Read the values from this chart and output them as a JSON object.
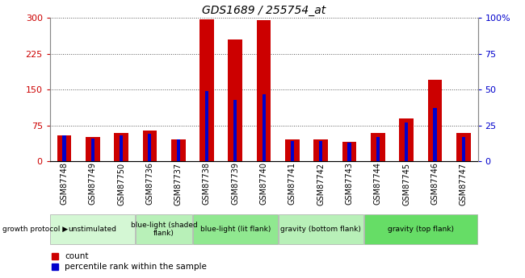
{
  "title": "GDS1689 / 255754_at",
  "samples": [
    "GSM87748",
    "GSM87749",
    "GSM87750",
    "GSM87736",
    "GSM87737",
    "GSM87738",
    "GSM87739",
    "GSM87740",
    "GSM87741",
    "GSM87742",
    "GSM87743",
    "GSM87744",
    "GSM87745",
    "GSM87746",
    "GSM87747"
  ],
  "count_values": [
    55,
    50,
    60,
    65,
    45,
    298,
    255,
    296,
    45,
    45,
    40,
    60,
    90,
    170,
    60
  ],
  "percentile_values": [
    18,
    16,
    18,
    19,
    15,
    49,
    43,
    47,
    14,
    14,
    13,
    17,
    27,
    37,
    17
  ],
  "ylim_left": [
    0,
    300
  ],
  "ylim_right": [
    0,
    100
  ],
  "yticks_left": [
    0,
    75,
    150,
    225,
    300
  ],
  "yticks_right": [
    0,
    25,
    50,
    75,
    100
  ],
  "bar_color_red": "#cc0000",
  "bar_color_blue": "#0000cc",
  "groups": [
    {
      "label": "unstimulated",
      "start": 0,
      "end": 3,
      "color": "#d4f7d4"
    },
    {
      "label": "blue-light (shaded\nflank)",
      "start": 3,
      "end": 5,
      "color": "#b8f0b8"
    },
    {
      "label": "blue-light (lit flank)",
      "start": 5,
      "end": 8,
      "color": "#90e890"
    },
    {
      "label": "gravity (bottom flank)",
      "start": 8,
      "end": 11,
      "color": "#b8f0b8"
    },
    {
      "label": "gravity (top flank)",
      "start": 11,
      "end": 15,
      "color": "#66dd66"
    }
  ],
  "growth_protocol_label": "growth protocol",
  "legend_count": "count",
  "legend_percentile": "percentile rank within the sample",
  "bar_width": 0.5,
  "blue_bar_width": 0.12,
  "plot_bg": "#ffffff",
  "tick_label_color_left": "#cc0000",
  "tick_label_color_right": "#0000cc",
  "tick_fontsize": 8,
  "sample_fontsize": 7,
  "title_fontsize": 10
}
